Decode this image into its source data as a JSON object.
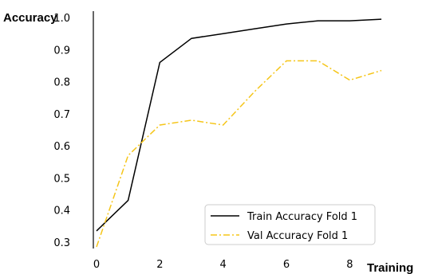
{
  "chart_data": {
    "type": "line",
    "title": "",
    "xlabel": "Training",
    "ylabel": "Accuracy",
    "xlim": [
      -0.1,
      9.3
    ],
    "ylim": [
      0.28,
      1.02
    ],
    "x_ticks": [
      0,
      2,
      4,
      6,
      8
    ],
    "y_ticks": [
      0.3,
      0.4,
      0.5,
      0.6,
      0.7,
      0.8,
      0.9,
      1.0
    ],
    "y_tick_labels": [
      "0.3",
      "0.4",
      "0.5",
      "0.6",
      "0.7",
      "0.8",
      "0.9",
      "1.0"
    ],
    "grid": false,
    "legend_position": "bottom-right",
    "series": [
      {
        "name": "Train Accuracy Fold 1",
        "color": "#000000",
        "line_style": "solid",
        "x": [
          0,
          1,
          2,
          3,
          4,
          5,
          6,
          7,
          8,
          9
        ],
        "y": [
          0.335,
          0.43,
          0.86,
          0.935,
          0.95,
          0.965,
          0.98,
          0.99,
          0.99,
          0.995
        ]
      },
      {
        "name": "Val Accuracy Fold 1",
        "color": "#f5c518",
        "line_style": "dashdot",
        "x": [
          0,
          1,
          2,
          3,
          4,
          5,
          6,
          7,
          8,
          9
        ],
        "y": [
          0.285,
          0.57,
          0.665,
          0.68,
          0.665,
          0.77,
          0.865,
          0.865,
          0.805,
          0.835
        ]
      }
    ]
  }
}
